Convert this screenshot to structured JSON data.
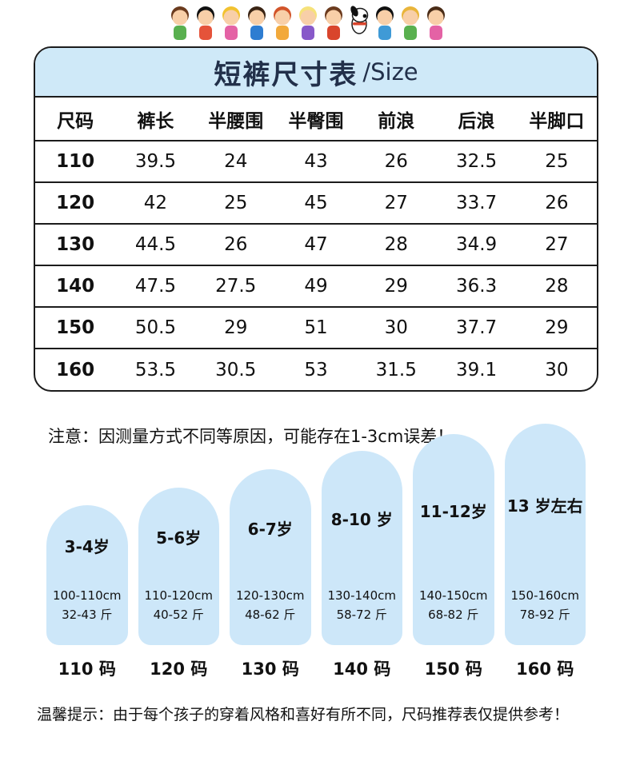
{
  "table": {
    "title": "短裤尺寸表",
    "title_suffix": "/Size",
    "headers": [
      "尺码",
      "裤长",
      "半腰围",
      "半臀围",
      "前浪",
      "后浪",
      "半脚口"
    ],
    "rows": [
      [
        "110",
        "39.5",
        "24",
        "43",
        "26",
        "32.5",
        "25"
      ],
      [
        "120",
        "42",
        "25",
        "45",
        "27",
        "33.7",
        "26"
      ],
      [
        "130",
        "44.5",
        "26",
        "47",
        "28",
        "34.9",
        "27"
      ],
      [
        "140",
        "47.5",
        "27.5",
        "49",
        "29",
        "36.3",
        "28"
      ],
      [
        "150",
        "50.5",
        "29",
        "51",
        "30",
        "37.7",
        "29"
      ],
      [
        "160",
        "53.5",
        "30.5",
        "53",
        "31.5",
        "39.1",
        "30"
      ]
    ]
  },
  "note": "注意：因测量方式不同等原因，可能存在1-3cm误差！",
  "capsules": [
    {
      "age": "3-4岁",
      "height_range": "100-110cm",
      "weight_range": "32-43 斤",
      "size": "110 码"
    },
    {
      "age": "5-6岁",
      "height_range": "110-120cm",
      "weight_range": "40-52 斤",
      "size": "120 码"
    },
    {
      "age": "6-7岁",
      "height_range": "120-130cm",
      "weight_range": "48-62 斤",
      "size": "130 码"
    },
    {
      "age": "8-10 岁",
      "height_range": "130-140cm",
      "weight_range": "58-72 斤",
      "size": "140 码"
    },
    {
      "age": "11-12岁",
      "height_range": "140-150cm",
      "weight_range": "68-82 斤",
      "size": "150 码"
    },
    {
      "age": "13 岁左右",
      "height_range": "150-160cm",
      "weight_range": "78-92 斤",
      "size": "160 码"
    }
  ],
  "footer": "温馨提示：由于每个孩子的穿着风格和喜好有所不同，尺码推荐表仅提供参考！",
  "colors": {
    "header_blue": "#cfe9f8",
    "capsule_blue": "#cde7f9",
    "border_black": "#1c1c1c",
    "title_navy": "#22304a"
  }
}
